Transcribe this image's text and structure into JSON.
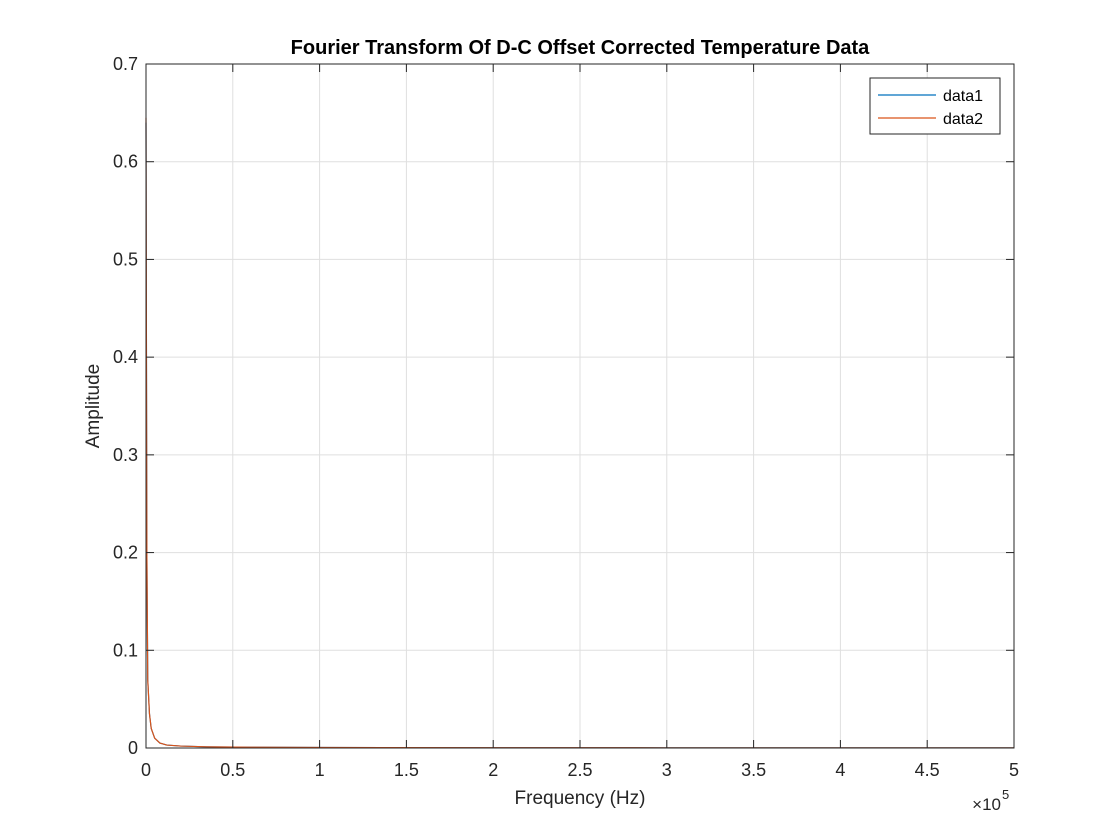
{
  "chart_data": {
    "type": "line",
    "title": "Fourier Transform Of D-C Offset Corrected Temperature Data",
    "xlabel": "Frequency (Hz)",
    "ylabel": "Amplitude",
    "xlim": [
      0,
      500000
    ],
    "ylim": [
      0,
      0.7
    ],
    "x_ticks": [
      0,
      50000,
      100000,
      150000,
      200000,
      250000,
      300000,
      350000,
      400000,
      450000,
      500000
    ],
    "x_tick_labels": [
      "0",
      "0.5",
      "1",
      "1.5",
      "2",
      "2.5",
      "3",
      "3.5",
      "4",
      "4.5",
      "5"
    ],
    "x_exponent_base": "×10",
    "x_exponent_power": "5",
    "y_ticks": [
      0,
      0.1,
      0.2,
      0.3,
      0.4,
      0.5,
      0.6,
      0.7
    ],
    "y_tick_labels": [
      "0",
      "0.1",
      "0.2",
      "0.3",
      "0.4",
      "0.5",
      "0.6",
      "0.7"
    ],
    "grid": true,
    "legend_position": "top-right",
    "series": [
      {
        "name": "data1",
        "color": "#0072BD",
        "x": [
          0,
          200,
          500,
          1000,
          2000,
          3000,
          5000,
          8000,
          12000,
          20000,
          35000,
          60000,
          100000,
          200000,
          300000,
          400000,
          500000
        ],
        "y": [
          0.64,
          0.45,
          0.2,
          0.07,
          0.035,
          0.02,
          0.01,
          0.005,
          0.003,
          0.002,
          0.0012,
          0.0008,
          0.0005,
          0.0003,
          0.0002,
          0.0002,
          0.0002
        ]
      },
      {
        "name": "data2",
        "color": "#D95319",
        "x": [
          0,
          200,
          500,
          1000,
          2000,
          3000,
          5000,
          8000,
          12000,
          20000,
          35000,
          60000,
          100000,
          200000,
          300000,
          400000,
          500000
        ],
        "y": [
          0.645,
          0.45,
          0.2,
          0.07,
          0.035,
          0.02,
          0.01,
          0.005,
          0.003,
          0.002,
          0.0012,
          0.0008,
          0.0005,
          0.0003,
          0.0002,
          0.0002,
          0.0002
        ]
      }
    ]
  }
}
